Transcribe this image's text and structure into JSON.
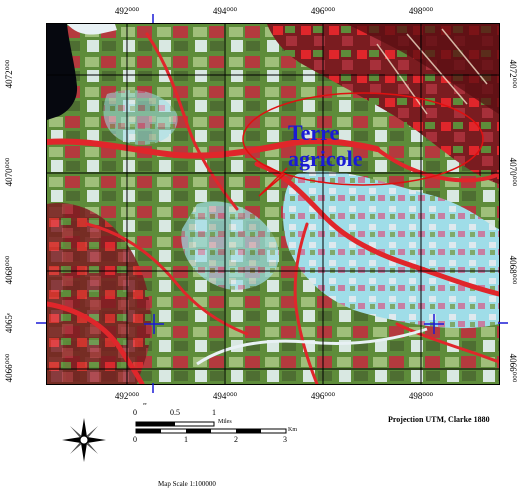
{
  "map": {
    "annotation_line1": "Terre",
    "annotation_line2": "agricole",
    "top_ticks": [
      "492⁰⁰⁰",
      "494⁰⁰⁰",
      "496⁰⁰⁰",
      "498⁰⁰⁰"
    ],
    "bottom_ticks": [
      "492⁰⁰⁰",
      "494⁰⁰⁰",
      "496⁰⁰⁰",
      "498⁰⁰⁰"
    ],
    "left_ticks": [
      "4072⁰⁰⁰",
      "4070⁰⁰⁰",
      "4068⁰⁰⁰",
      "4066⁰⁰⁰"
    ],
    "right_ticks": [
      "4072⁰⁰⁰",
      "4070⁰⁰⁰",
      "4068⁰⁰⁰",
      "4066⁰⁰⁰"
    ],
    "left_extra": "4065ᵉ",
    "bottom_extra": "ᵉᵉ",
    "colors": {
      "vegetation_red": "#e0262b",
      "field_green": "#5e8c3a",
      "bare_cyan": "#9fdde8",
      "sea_black": "#06080f",
      "annotation_blue": "#1a1ad6",
      "ellipse_red": "#e01010"
    }
  },
  "legend": {
    "scale_top_labels": [
      "0",
      "0.5",
      "1"
    ],
    "scale_top_unit": "Miles",
    "scale_bottom_labels": [
      "0",
      "1",
      "2",
      "3"
    ],
    "scale_bottom_unit": "Km",
    "projection": "Projection UTM, Clarke 1880",
    "scale_text": "Map Scale 1:100000",
    "north_icon": "compass-rose-icon"
  }
}
